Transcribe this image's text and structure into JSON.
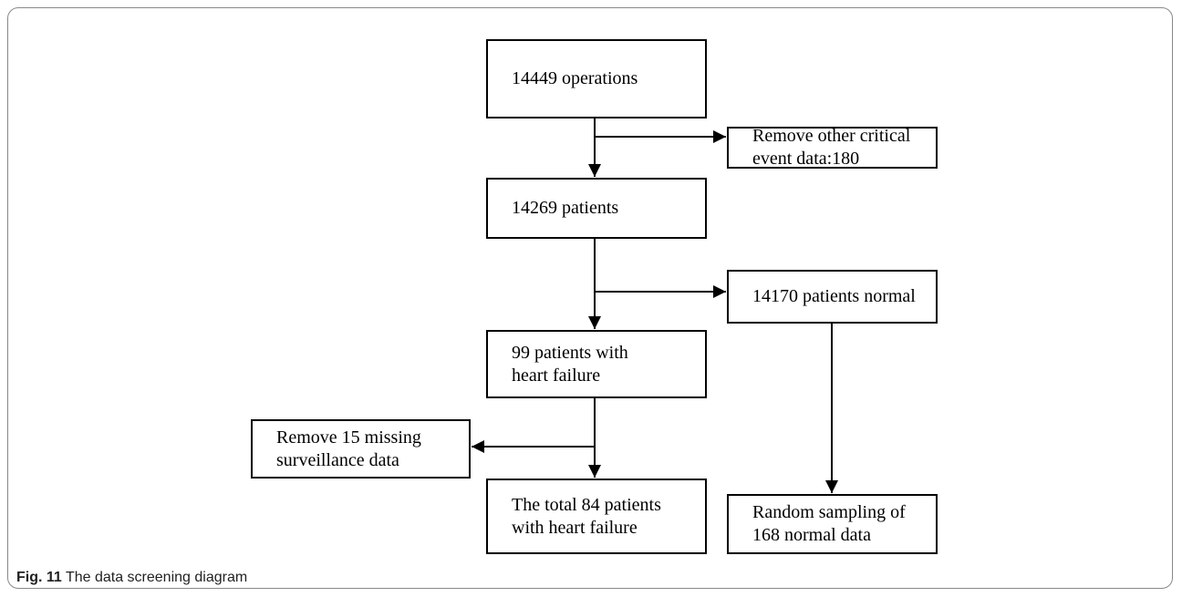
{
  "nodes": [
    {
      "lines": [
        "14449 operations"
      ]
    },
    {
      "lines": [
        "Remove other critical",
        "event data:180"
      ]
    },
    {
      "lines": [
        "14269 patients"
      ]
    },
    {
      "lines": [
        "14170 patients normal"
      ]
    },
    {
      "lines": [
        "99 patients with",
        "heart failure"
      ]
    },
    {
      "lines": [
        "Remove 15 missing",
        "surveillance data"
      ]
    },
    {
      "lines": [
        "The total 84 patients",
        "with heart failure"
      ]
    },
    {
      "lines": [
        "Random sampling of",
        "168 normal data"
      ]
    }
  ],
  "caption": {
    "label": "Fig. 11",
    "text": "The data screening diagram"
  }
}
